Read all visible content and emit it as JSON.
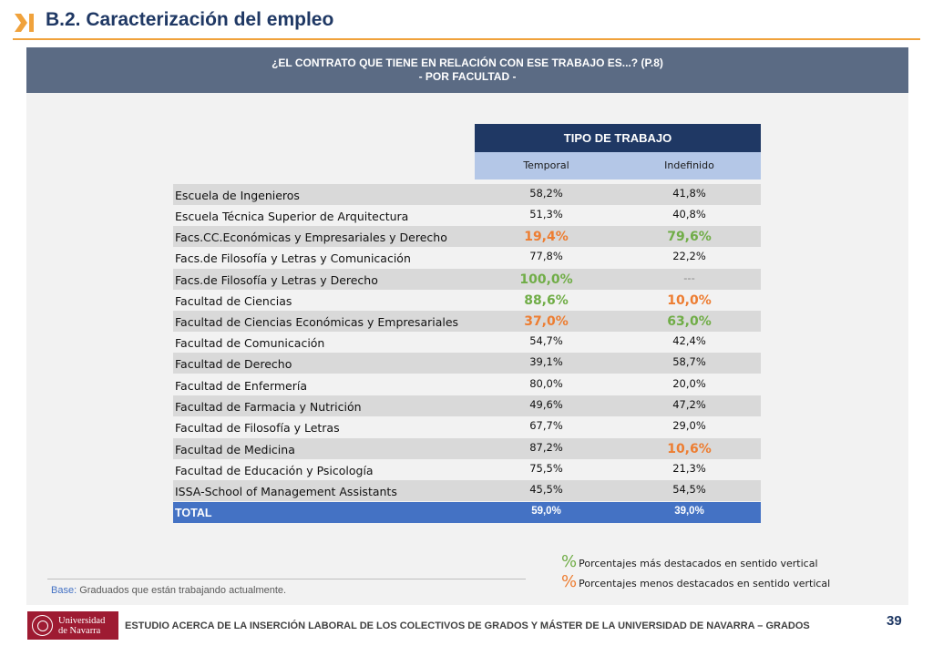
{
  "header": {
    "title": "B.2. Caracterización del empleo",
    "accent_color": "#f0a23c"
  },
  "band": {
    "line1": "¿EL CONTRATO QUE TIENE EN RELACIÓN CON ESE TRABAJO ES...? (P.8)",
    "line2": "- POR FACULTAD -"
  },
  "table": {
    "group_header": "TIPO DE TRABAJO",
    "columns": [
      "Temporal",
      "Indefinido"
    ],
    "rows": [
      {
        "label": "Escuela de Ingenieros",
        "temporal": "58,2%",
        "indefinido": "41,8%"
      },
      {
        "label": "Escuela Técnica Superior de Arquitectura",
        "temporal": "51,3%",
        "indefinido": "40,8%"
      },
      {
        "label": "Facs.CC.Económicas y Empresariales y Derecho",
        "temporal": "19,4%",
        "indefinido": "79,6%"
      },
      {
        "label": "Facs.de Filosofía y Letras y Comunicación",
        "temporal": "77,8%",
        "indefinido": "22,2%"
      },
      {
        "label": "Facs.de Filosofía y Letras y Derecho",
        "temporal": "100,0%",
        "indefinido": "---"
      },
      {
        "label": "Facultad de Ciencias",
        "temporal": "88,6%",
        "indefinido": "10,0%"
      },
      {
        "label": "Facultad de Ciencias Económicas y Empresariales",
        "temporal": "37,0%",
        "indefinido": "63,0%"
      },
      {
        "label": "Facultad de Comunicación",
        "temporal": "54,7%",
        "indefinido": "42,4%"
      },
      {
        "label": "Facultad de Derecho",
        "temporal": "39,1%",
        "indefinido": "58,7%"
      },
      {
        "label": "Facultad de Enfermería",
        "temporal": "80,0%",
        "indefinido": "20,0%"
      },
      {
        "label": "Facultad de Farmacia y Nutrición",
        "temporal": "49,6%",
        "indefinido": "47,2%"
      },
      {
        "label": "Facultad de Filosofía y Letras",
        "temporal": "67,7%",
        "indefinido": "29,0%"
      },
      {
        "label": "Facultad de Medicina",
        "temporal": "87,2%",
        "indefinido": "10,6%"
      },
      {
        "label": "Facultad de Educación y Psicología",
        "temporal": "75,5%",
        "indefinido": "21,3%"
      },
      {
        "label": "ISSA-School of Management Assistants",
        "temporal": "45,5%",
        "indefinido": "54,5%"
      }
    ],
    "total": {
      "label": "TOTAL",
      "temporal": "59,0%",
      "indefinido": "39,0%"
    }
  },
  "legend": {
    "symbol": "%",
    "more": "Porcentajes más destacados en sentido vertical",
    "less": "Porcentajes menos destacados en sentido vertical",
    "more_color": "#70ad47",
    "less_color": "#ed7d31"
  },
  "base": {
    "label": "Base:",
    "text": " Graduados que están trabajando actualmente."
  },
  "footer": {
    "logo_line1": "Universidad",
    "logo_line2": "de Navarra",
    "text": "ESTUDIO ACERCA DE LA INSERCIÓN LABORAL DE LOS COLECTIVOS DE GRADOS Y MÁSTER DE LA UNIVERSIDAD DE NAVARRA – GRADOS",
    "page_number": "39"
  }
}
